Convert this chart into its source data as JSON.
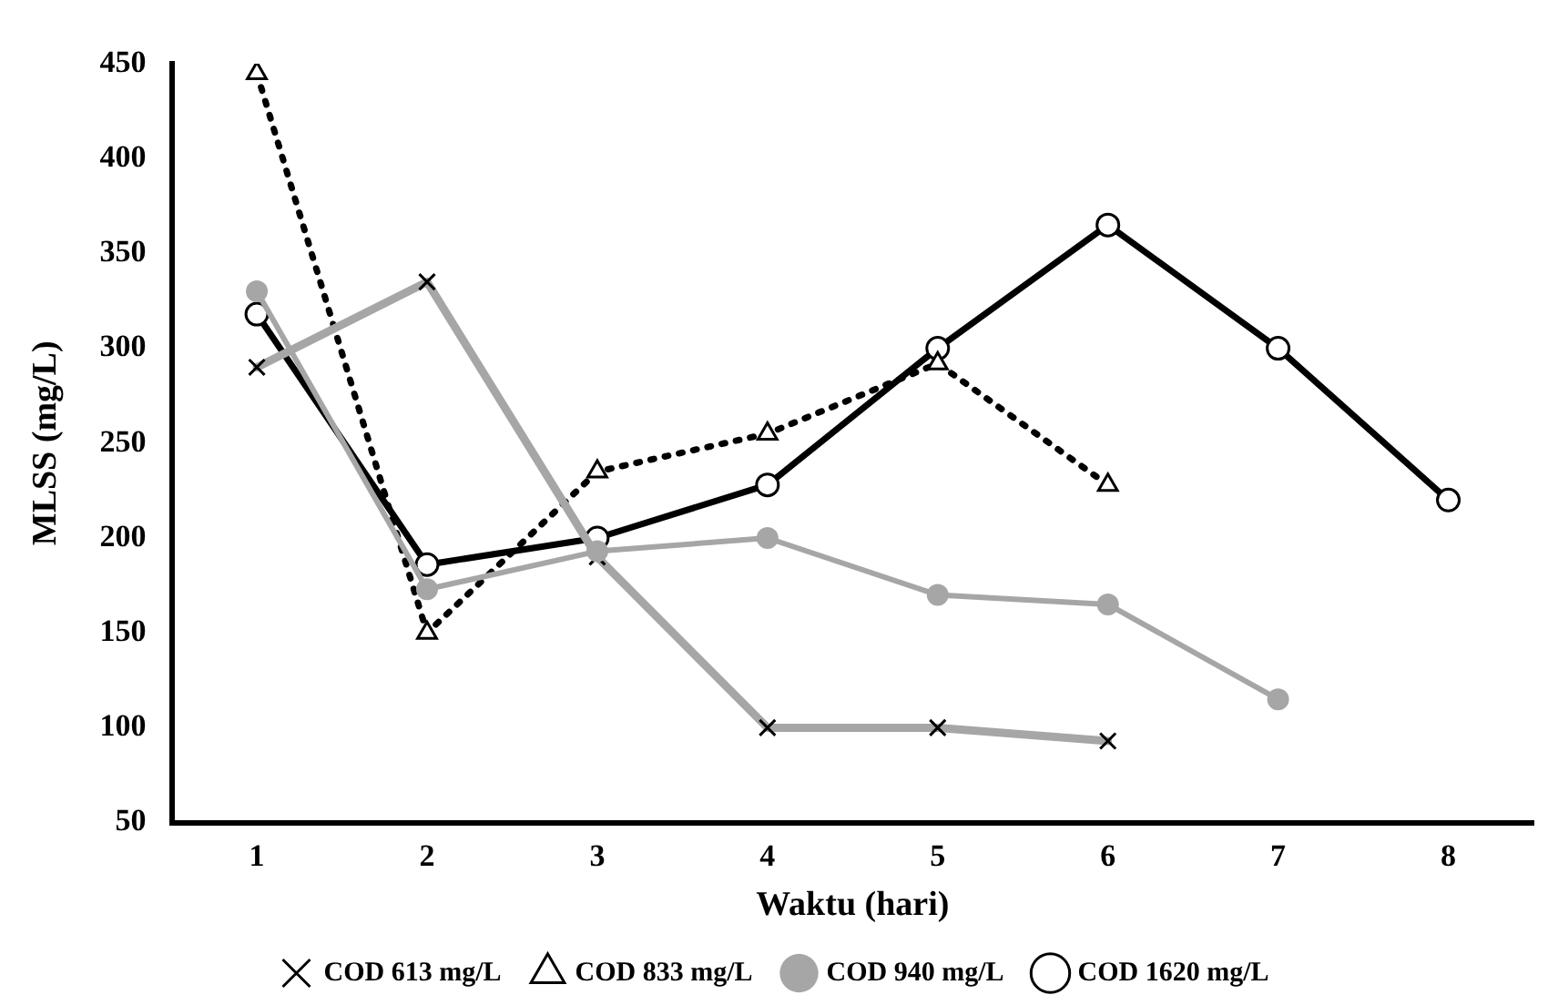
{
  "chart_data": {
    "type": "line",
    "xlabel": "Waktu (hari)",
    "ylabel": "MLSS (mg/L)",
    "categories": [
      "1",
      "2",
      "3",
      "4",
      "5",
      "6",
      "7",
      "8"
    ],
    "ylim": [
      50,
      450
    ],
    "yticks": [
      50,
      100,
      150,
      200,
      250,
      300,
      350,
      400,
      450
    ],
    "grid": false,
    "legend": "bottom",
    "series": [
      {
        "name": "COD 613 mg/L",
        "color": "#a6a6a6",
        "marker": "cross",
        "line_style": "solid",
        "values": [
          290,
          335,
          190,
          100,
          100,
          93,
          null,
          null
        ]
      },
      {
        "name": "COD 833 mg/L",
        "color": "#000000",
        "marker": "triangle",
        "line_style": "dotted",
        "values": [
          445,
          150,
          235,
          255,
          292,
          228,
          null,
          null
        ]
      },
      {
        "name": "COD 940 mg/L",
        "color": "#a6a6a6",
        "marker": "circle",
        "line_style": "solid",
        "values": [
          330,
          173,
          193,
          200,
          170,
          165,
          115,
          null
        ]
      },
      {
        "name": "COD 1620 mg/L",
        "color": "#000000",
        "marker": "circle",
        "line_style": "solid",
        "values": [
          318,
          186,
          200,
          228,
          300,
          365,
          300,
          220
        ]
      }
    ]
  }
}
